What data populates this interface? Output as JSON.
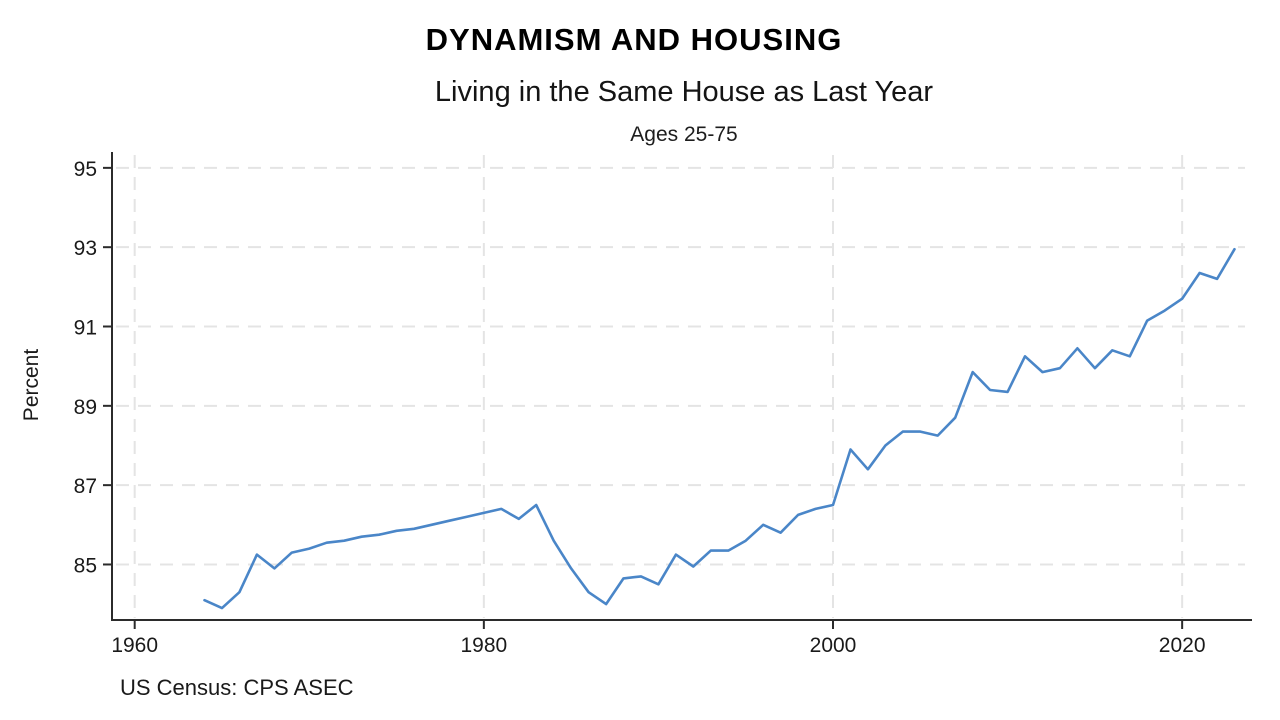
{
  "chart_data": {
    "type": "line",
    "title": "DYNAMISM AND HOUSING",
    "subtitle": "Living in the Same House as Last Year",
    "note": "Ages 25-75",
    "ylabel": "Percent",
    "xlabel": "",
    "source": "US Census: CPS ASEC",
    "legend_position": "none",
    "grid": "dashed, both axes",
    "xlim": [
      1958.7,
      2023.6
    ],
    "ylim": [
      83.6,
      95.4
    ],
    "xticks": [
      1960,
      1980,
      2000,
      2020
    ],
    "yticks": [
      85,
      87,
      89,
      91,
      93,
      95
    ],
    "colors": {
      "line": "#4a86c8",
      "axis": "#2b2b2b",
      "grid": "#e4e4e4",
      "tick_text": "#1a1a1a"
    },
    "x": [
      1964,
      1965,
      1966,
      1967,
      1968,
      1969,
      1970,
      1971,
      1972,
      1973,
      1974,
      1975,
      1976,
      1977,
      1978,
      1979,
      1980,
      1981,
      1982,
      1983,
      1984,
      1985,
      1986,
      1987,
      1988,
      1989,
      1990,
      1991,
      1992,
      1993,
      1994,
      1995,
      1996,
      1997,
      1998,
      1999,
      2000,
      2001,
      2002,
      2003,
      2004,
      2005,
      2006,
      2007,
      2008,
      2009,
      2010,
      2011,
      2012,
      2013,
      2014,
      2015,
      2016,
      2017,
      2018,
      2019,
      2020,
      2021,
      2022,
      2023
    ],
    "series": [
      {
        "name": "Percent living in same house as last year, ages 25-75",
        "color": "#4a86c8",
        "values": [
          84.1,
          83.9,
          84.3,
          85.25,
          84.9,
          85.3,
          85.4,
          85.55,
          85.6,
          85.7,
          85.75,
          85.85,
          85.9,
          86.0,
          86.1,
          86.2,
          86.3,
          86.4,
          86.15,
          86.5,
          85.6,
          84.9,
          84.3,
          84.0,
          84.65,
          84.7,
          84.5,
          85.25,
          84.95,
          85.35,
          85.35,
          85.6,
          86.0,
          85.8,
          86.25,
          86.4,
          86.5,
          87.9,
          87.4,
          88.0,
          88.35,
          88.35,
          88.25,
          88.7,
          89.85,
          89.4,
          89.35,
          90.25,
          89.85,
          89.95,
          90.45,
          89.95,
          90.4,
          90.25,
          91.15,
          91.4,
          91.7,
          92.35,
          92.2,
          92.95
        ]
      }
    ]
  }
}
